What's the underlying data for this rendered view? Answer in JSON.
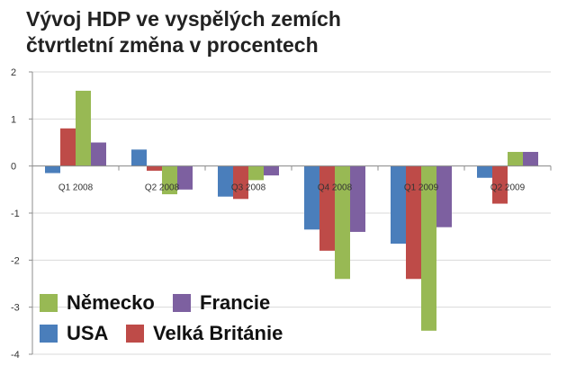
{
  "title_lines": [
    "Vývoj HDP ve vyspělých zemích",
    "čtvrtletní změna v procentech"
  ],
  "chart_data": {
    "type": "bar",
    "title": "Vývoj HDP ve vyspělých zemích čtvrtletní změna v procentech",
    "categories": [
      "Q1 2008",
      "Q2 2008",
      "Q3 2008",
      "Q4 2008",
      "Q1 2009",
      "Q2 2009"
    ],
    "series": [
      {
        "name": "USA",
        "color": "#4a7ebb",
        "values": [
          -0.15,
          0.35,
          -0.65,
          -1.35,
          -1.65,
          -0.25
        ]
      },
      {
        "name": "Velká Británie",
        "color": "#be4b48",
        "values": [
          0.8,
          -0.1,
          -0.7,
          -1.8,
          -2.4,
          -0.8
        ]
      },
      {
        "name": "Německo",
        "color": "#98b954",
        "values": [
          1.6,
          -0.6,
          -0.3,
          -2.4,
          -3.5,
          0.3
        ]
      },
      {
        "name": "Francie",
        "color": "#7d60a0",
        "values": [
          0.5,
          -0.5,
          -0.2,
          -1.4,
          -1.3,
          0.3
        ]
      }
    ],
    "yticks": [
      2,
      1,
      0,
      -1,
      -2,
      -3,
      -4
    ],
    "ylim": [
      -4,
      2
    ],
    "grid": true,
    "legend_position": "bottom-left"
  },
  "legend": {
    "rows": [
      [
        {
          "label": "Německo",
          "color": "#98b954"
        },
        {
          "label": "Francie",
          "color": "#7d60a0"
        }
      ],
      [
        {
          "label": "USA",
          "color": "#4a7ebb"
        },
        {
          "label": "Velká Británie",
          "color": "#be4b48"
        }
      ]
    ]
  }
}
